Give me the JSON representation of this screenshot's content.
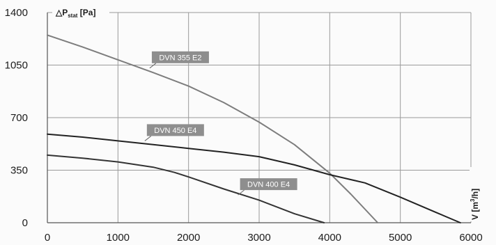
{
  "chart_data": {
    "type": "line",
    "xlim": [
      0,
      6000
    ],
    "ylim": [
      0,
      1400
    ],
    "x_ticks": [
      0,
      1000,
      2000,
      3000,
      4000,
      5000,
      6000
    ],
    "y_ticks": [
      0,
      350,
      700,
      1050,
      1400
    ],
    "x_tick_labels": [
      "0",
      "1000",
      "2000",
      "3000",
      "4000",
      "5000",
      "6000"
    ],
    "y_tick_labels": [
      "0",
      "350",
      "700",
      "1050",
      "1400"
    ],
    "ylabel": {
      "prefix": "△P",
      "sub": "stat",
      "unit": " [Pa]"
    },
    "xlabel": {
      "prefix": "V [m",
      "sup": "3",
      "suffix": "/h]"
    },
    "grid": true,
    "series": [
      {
        "name": "DVN 355 E2",
        "color": "#7d7d7d",
        "x": [
          0,
          500,
          1000,
          1500,
          2000,
          2500,
          3000,
          3500,
          4000,
          4300,
          4680
        ],
        "y": [
          1250,
          1170,
          1085,
          1000,
          910,
          800,
          670,
          520,
          330,
          190,
          0
        ]
      },
      {
        "name": "DVN 450 E4",
        "color": "#222222",
        "x": [
          0,
          500,
          1000,
          1500,
          2000,
          2500,
          3000,
          3500,
          4000,
          4500,
          5000,
          5500,
          5850
        ],
        "y": [
          590,
          570,
          545,
          520,
          495,
          470,
          440,
          385,
          320,
          265,
          170,
          70,
          0
        ]
      },
      {
        "name": "DVN 400 E4",
        "color": "#333333",
        "x": [
          0,
          500,
          1000,
          1500,
          1800,
          2000,
          2500,
          3000,
          3500,
          3920
        ],
        "y": [
          450,
          430,
          405,
          370,
          335,
          305,
          225,
          150,
          60,
          0
        ]
      }
    ],
    "labels": [
      {
        "series": "DVN 355 E2",
        "text": "DVN 355 E2",
        "anchor_x": 1450,
        "anchor_y": 1030
      },
      {
        "series": "DVN 450 E4",
        "text": "DVN 450 E4",
        "anchor_x": 1380,
        "anchor_y": 545
      },
      {
        "series": "DVN 400 E4",
        "text": "DVN 400 E4",
        "anchor_x": 2700,
        "anchor_y": 185
      }
    ]
  }
}
